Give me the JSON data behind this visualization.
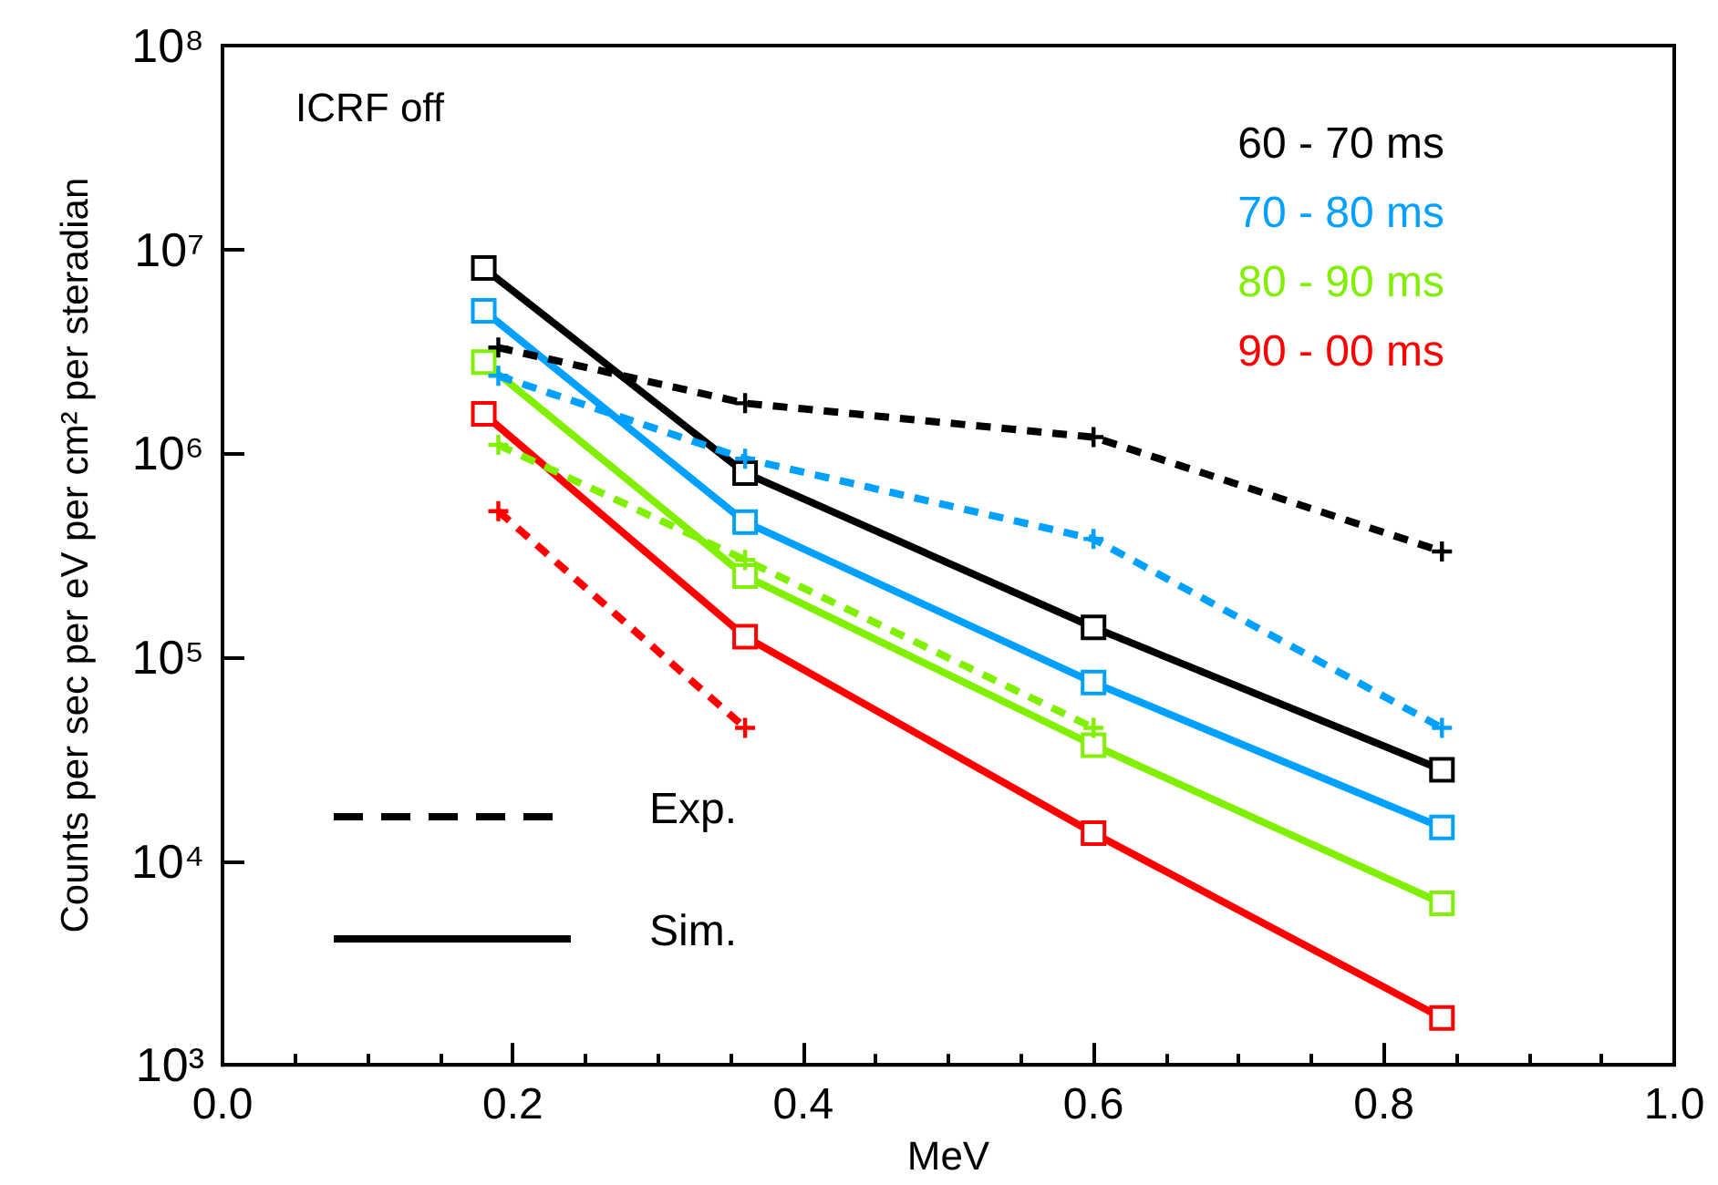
{
  "chart_data": {
    "type": "line",
    "xlabel": "MeV",
    "ylabel": "Counts per sec per eV per cm² per steradian",
    "log": "y",
    "grid": false,
    "legend": "top right",
    "xlim": [
      0,
      1
    ],
    "xticks": [
      {
        "value": 0,
        "label": "0.0"
      },
      {
        "value": 0.2,
        "label": "0.2"
      },
      {
        "value": 0.4,
        "label": "0.4"
      },
      {
        "value": 0.6,
        "label": "0.6"
      },
      {
        "value": 0.8,
        "label": "0.8"
      },
      {
        "value": 1,
        "label": "1.0"
      }
    ],
    "ylim": [
      1000,
      100000000
    ],
    "yticks": [
      {
        "value": 1000,
        "label": "10³"
      },
      {
        "value": 10000,
        "label": "10⁴"
      },
      {
        "value": 100000,
        "label": "10⁵"
      },
      {
        "value": 1000000,
        "label": "10⁶"
      },
      {
        "value": 10000000,
        "label": "10⁷"
      },
      {
        "value": 100000000,
        "label": "10⁸"
      }
    ],
    "annotations": [
      "ICRF off",
      "Exp.",
      "Sim."
    ],
    "series": [
      {
        "name": "60 - 70 ms",
        "color": "#000000",
        "line_style": "solid",
        "marker": "square",
        "x": [
          0.18,
          0.36,
          0.6,
          0.84
        ],
        "values": [
          8100000,
          800000,
          140000,
          28000
        ]
      },
      {
        "name": "70 - 80 ms",
        "color": "#00a0ff",
        "line_style": "solid",
        "marker": "square",
        "x": [
          0.18,
          0.36,
          0.6,
          0.84
        ],
        "values": [
          5000000,
          460000,
          75000,
          14600
        ]
      },
      {
        "name": "80 - 90 ms",
        "color": "#80f000",
        "line_style": "solid",
        "marker": "square",
        "x": [
          0.18,
          0.36,
          0.6,
          0.84
        ],
        "values": [
          2800000,
          250000,
          37000,
          6200
        ]
      },
      {
        "name": "90 - 00 ms",
        "color": "#ff0000",
        "line_style": "solid",
        "marker": "square",
        "x": [
          0.18,
          0.36,
          0.6,
          0.84
        ],
        "values": [
          1560000,
          126000,
          13700,
          1700
        ]
      },
      {
        "color": "#000000",
        "line_style": "dashed",
        "marker": "cross",
        "x": [
          0.19,
          0.36,
          0.6,
          0.84
        ],
        "values": [
          3300000,
          1760000,
          1200000,
          330000
        ]
      },
      {
        "color": "#00a0ff",
        "line_style": "dashed",
        "marker": "cross",
        "x": [
          0.19,
          0.36,
          0.6,
          0.84
        ],
        "values": [
          2400000,
          940000,
          380000,
          45000
        ]
      },
      {
        "color": "#80f000",
        "line_style": "dashed",
        "marker": "cross",
        "x": [
          0.19,
          0.36,
          0.6
        ],
        "values": [
          1100000,
          300000,
          45000
        ]
      },
      {
        "color": "#ff0000",
        "line_style": "dashed",
        "marker": "cross",
        "x": [
          0.19,
          0.36
        ],
        "values": [
          520000,
          45000
        ]
      }
    ]
  }
}
